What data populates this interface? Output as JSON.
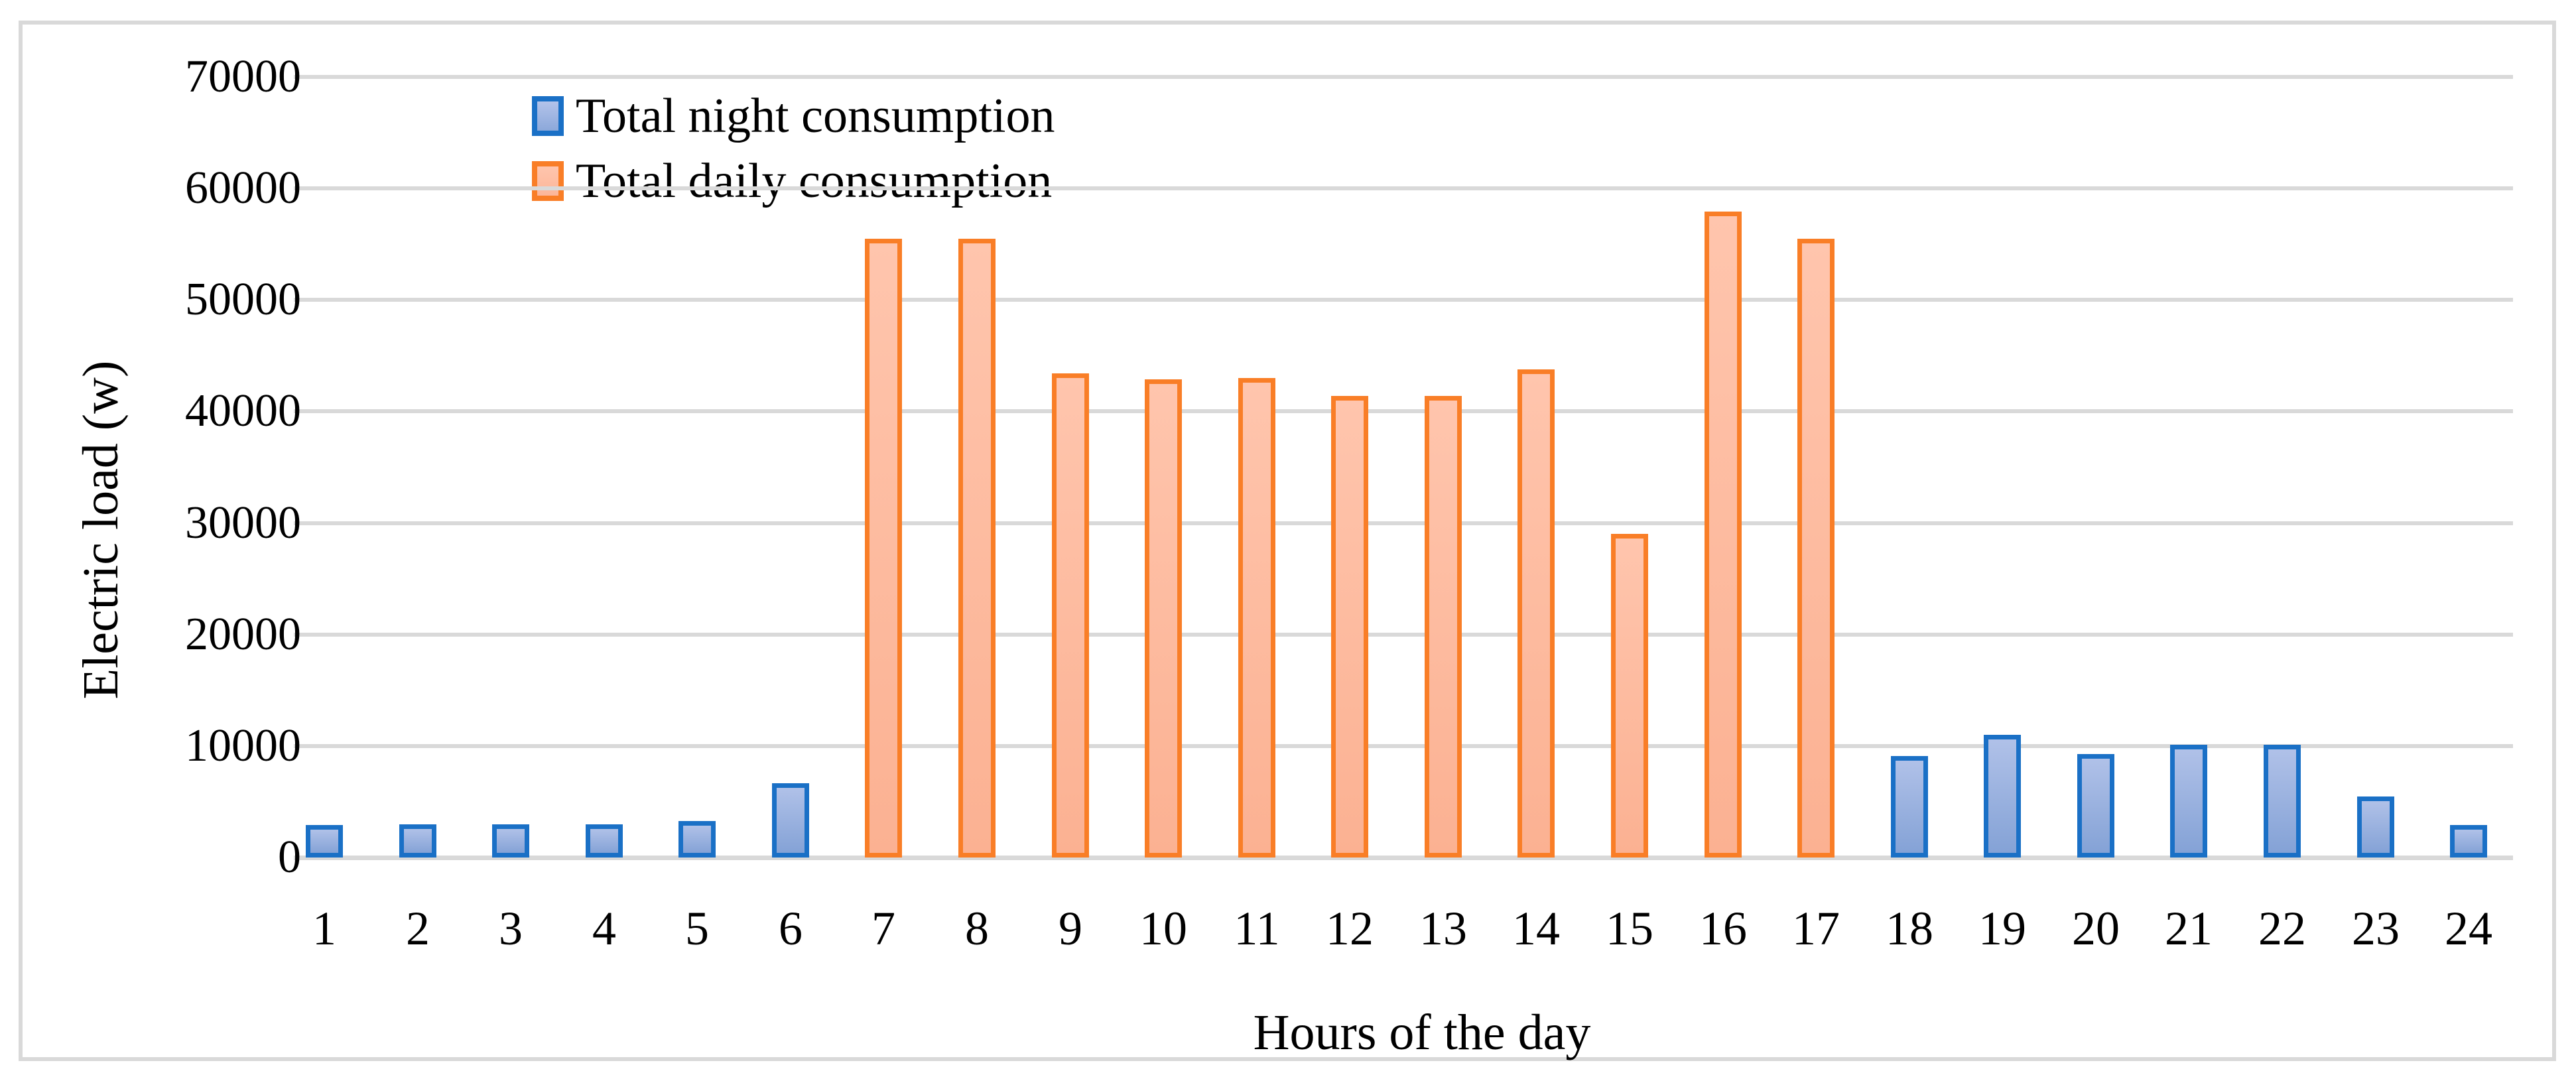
{
  "figure": {
    "y_axis_title": "Electric load (w)",
    "x_axis_title": "Hours of the day"
  },
  "legend": {
    "items": [
      {
        "label": "Total night consumption",
        "series": "night"
      },
      {
        "label": "Total daily consumption",
        "series": "daily"
      }
    ]
  },
  "colors": {
    "night_border": "#1A70C6",
    "night_fill_top": "#B0C1E8",
    "night_fill_bottom": "#84A2D6",
    "daily_border": "#F97E27",
    "daily_fill_top": "#FFC5AD",
    "daily_fill_bottom": "#FBB192",
    "gridline": "#D9D9D9",
    "text": "#000000"
  },
  "chart_data": {
    "type": "bar",
    "title": "",
    "xlabel": "Hours of the day",
    "ylabel": "Electric load (w)",
    "categories": [
      1,
      2,
      3,
      4,
      5,
      6,
      7,
      8,
      9,
      10,
      11,
      12,
      13,
      14,
      15,
      16,
      17,
      18,
      19,
      20,
      21,
      22,
      23,
      24
    ],
    "series": [
      {
        "name": "Total night consumption",
        "color": "#1A70C6",
        "values": [
          2900,
          3000,
          3000,
          3000,
          3250,
          6650,
          null,
          null,
          null,
          null,
          null,
          null,
          null,
          null,
          null,
          null,
          null,
          9100,
          11000,
          9300,
          10100,
          10100,
          5500,
          2900
        ]
      },
      {
        "name": "Total daily consumption",
        "color": "#F97E27",
        "values": [
          null,
          null,
          null,
          null,
          null,
          null,
          55500,
          55500,
          43400,
          42900,
          43000,
          41400,
          41400,
          43800,
          29000,
          57900,
          55500,
          null,
          null,
          null,
          null,
          null,
          null,
          null
        ]
      }
    ],
    "ylim": [
      0,
      70000
    ],
    "yticks": [
      0,
      10000,
      20000,
      30000,
      40000,
      50000,
      60000,
      70000
    ],
    "grid": true,
    "legend_position": "top-left-inside"
  }
}
